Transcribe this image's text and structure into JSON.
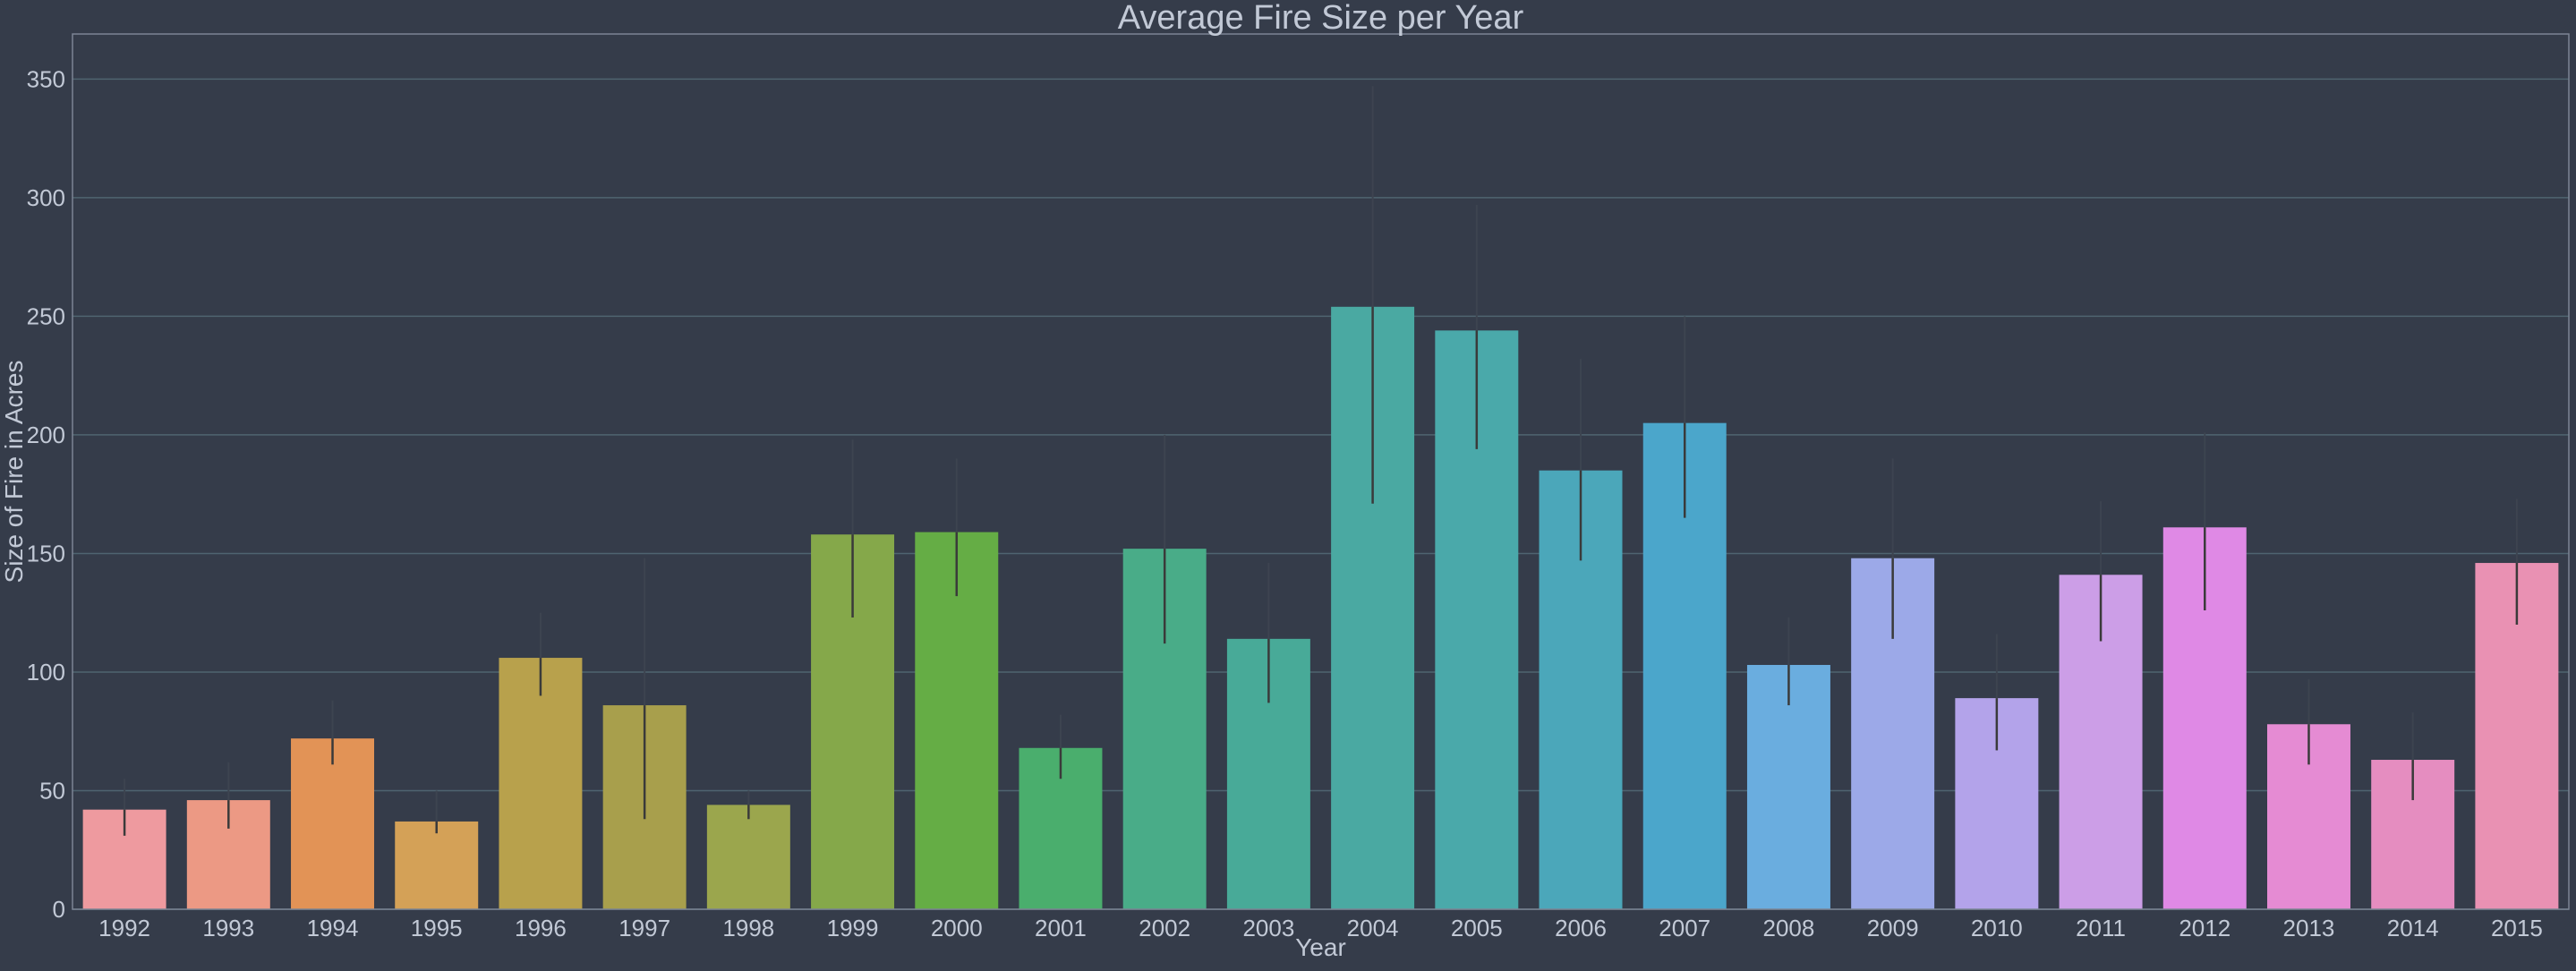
{
  "chart_data": {
    "type": "bar",
    "title": "Average Fire Size per Year",
    "xlabel": "Year",
    "ylabel": "Size of Fire in Acres",
    "ylim": [
      0,
      369
    ],
    "yticks": [
      0,
      50,
      100,
      150,
      200,
      250,
      300,
      350
    ],
    "grid": true,
    "categories": [
      "1992",
      "1993",
      "1994",
      "1995",
      "1996",
      "1997",
      "1998",
      "1999",
      "2000",
      "2001",
      "2002",
      "2003",
      "2004",
      "2005",
      "2006",
      "2007",
      "2008",
      "2009",
      "2010",
      "2011",
      "2012",
      "2013",
      "2014",
      "2015"
    ],
    "values": [
      42,
      46,
      72,
      37,
      106,
      86,
      44,
      158,
      159,
      68,
      152,
      114,
      254,
      244,
      185,
      205,
      103,
      148,
      89,
      141,
      161,
      78,
      63,
      146
    ],
    "error_low": [
      31,
      34,
      61,
      32,
      90,
      38,
      38,
      123,
      132,
      55,
      112,
      87,
      171,
      194,
      147,
      165,
      86,
      114,
      67,
      113,
      126,
      61,
      46,
      120
    ],
    "error_high": [
      55,
      62,
      88,
      50,
      125,
      148,
      50,
      198,
      190,
      82,
      200,
      146,
      347,
      297,
      232,
      250,
      123,
      190,
      116,
      172,
      201,
      97,
      83,
      173
    ],
    "colors": [
      "#ee9a9f",
      "#ec9984",
      "#e29356",
      "#d4a157",
      "#b8a14c",
      "#a89f4c",
      "#9ba64d",
      "#85a84a",
      "#65ad45",
      "#4aae6d",
      "#49ac88",
      "#48aa98",
      "#4aa9a2",
      "#4aa9aa",
      "#4ba7ba",
      "#4ba6cb",
      "#6aaddf",
      "#9ca9e8",
      "#b3a3ea",
      "#cc9ee7",
      "#df89e5",
      "#e58bd3",
      "#e58dc0",
      "#e991b3"
    ]
  }
}
